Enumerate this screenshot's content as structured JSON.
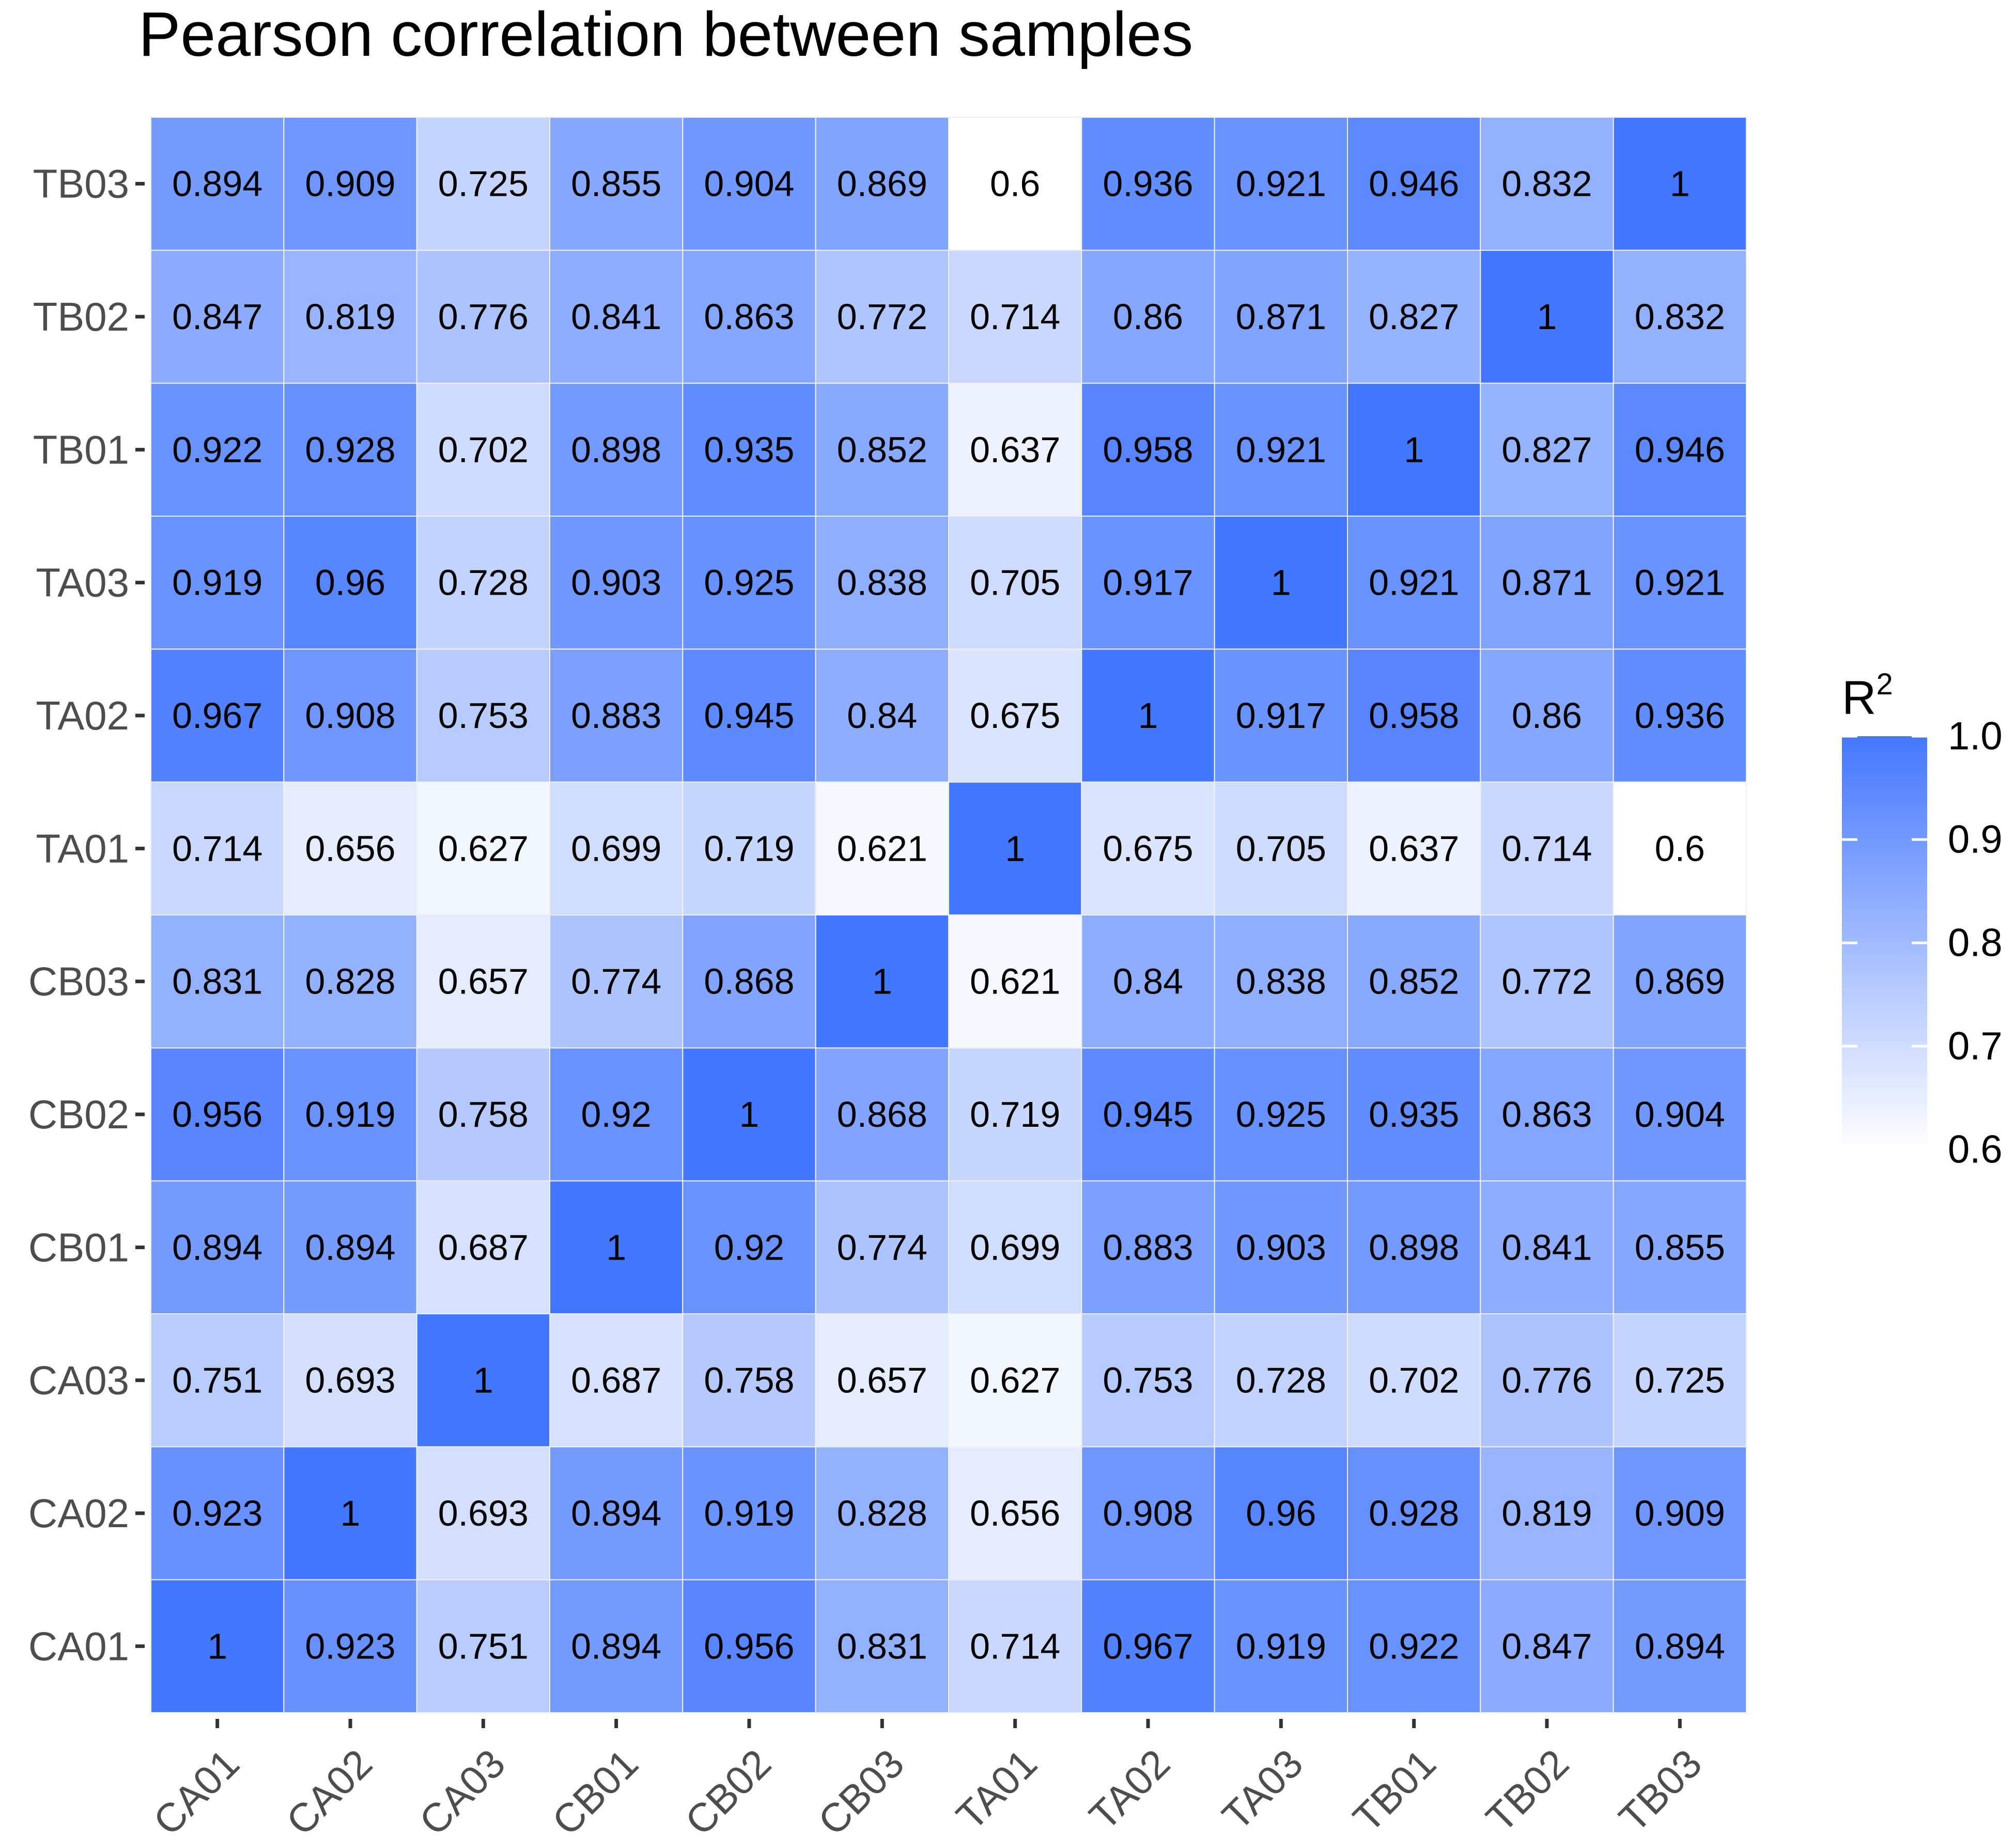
{
  "chart_data": {
    "type": "heatmap",
    "title": "Pearson correlation between samples",
    "xlabel": "",
    "ylabel": "",
    "categories": [
      "CA01",
      "CA02",
      "CA03",
      "CB01",
      "CB02",
      "CB03",
      "TA01",
      "TA02",
      "TA03",
      "TB01",
      "TB02",
      "TB03"
    ],
    "value_labels": [
      [
        "1",
        "0.923",
        "0.751",
        "0.894",
        "0.956",
        "0.831",
        "0.714",
        "0.967",
        "0.919",
        "0.922",
        "0.847",
        "0.894"
      ],
      [
        "0.923",
        "1",
        "0.693",
        "0.894",
        "0.919",
        "0.828",
        "0.656",
        "0.908",
        "0.96",
        "0.928",
        "0.819",
        "0.909"
      ],
      [
        "0.751",
        "0.693",
        "1",
        "0.687",
        "0.758",
        "0.657",
        "0.627",
        "0.753",
        "0.728",
        "0.702",
        "0.776",
        "0.725"
      ],
      [
        "0.894",
        "0.894",
        "0.687",
        "1",
        "0.92",
        "0.774",
        "0.699",
        "0.883",
        "0.903",
        "0.898",
        "0.841",
        "0.855"
      ],
      [
        "0.956",
        "0.919",
        "0.758",
        "0.92",
        "1",
        "0.868",
        "0.719",
        "0.945",
        "0.925",
        "0.935",
        "0.863",
        "0.904"
      ],
      [
        "0.831",
        "0.828",
        "0.657",
        "0.774",
        "0.868",
        "1",
        "0.621",
        "0.84",
        "0.838",
        "0.852",
        "0.772",
        "0.869"
      ],
      [
        "0.714",
        "0.656",
        "0.627",
        "0.699",
        "0.719",
        "0.621",
        "1",
        "0.675",
        "0.705",
        "0.637",
        "0.714",
        "0.6"
      ],
      [
        "0.967",
        "0.908",
        "0.753",
        "0.883",
        "0.945",
        "0.84",
        "0.675",
        "1",
        "0.917",
        "0.958",
        "0.86",
        "0.936"
      ],
      [
        "0.919",
        "0.96",
        "0.728",
        "0.903",
        "0.925",
        "0.838",
        "0.705",
        "0.917",
        "1",
        "0.921",
        "0.871",
        "0.921"
      ],
      [
        "0.922",
        "0.928",
        "0.702",
        "0.898",
        "0.935",
        "0.852",
        "0.637",
        "0.958",
        "0.921",
        "1",
        "0.827",
        "0.946"
      ],
      [
        "0.847",
        "0.819",
        "0.776",
        "0.841",
        "0.863",
        "0.772",
        "0.714",
        "0.86",
        "0.871",
        "0.827",
        "1",
        "0.832"
      ],
      [
        "0.894",
        "0.909",
        "0.725",
        "0.855",
        "0.904",
        "0.869",
        "0.6",
        "0.936",
        "0.921",
        "0.946",
        "0.832",
        "1"
      ]
    ],
    "color_range": [
      0.6,
      1.0
    ],
    "color_low": "#ffffff",
    "color_high": "#4477ff",
    "grid_color": "#f0f0f0",
    "legend": {
      "title": "R",
      "title_superscript": "2",
      "position": "right",
      "ticks": [
        1.0,
        0.9,
        0.8,
        0.7,
        0.6
      ],
      "tick_labels": [
        "1.0",
        "0.9",
        "0.8",
        "0.7",
        "0.6"
      ]
    }
  }
}
